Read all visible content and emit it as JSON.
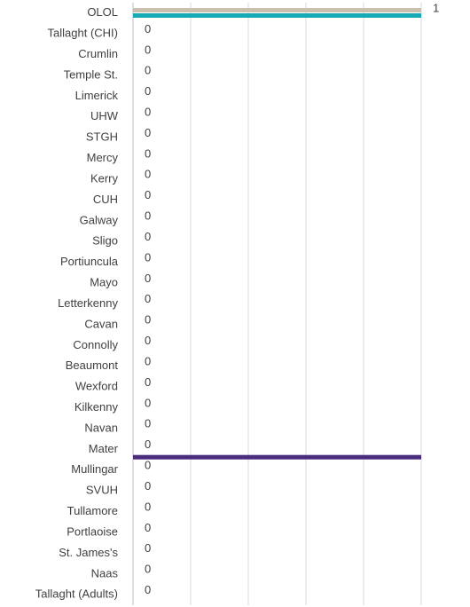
{
  "chart_data": {
    "type": "bar",
    "orientation": "horizontal",
    "categories": [
      "OLOL",
      "Tallaght (CHI)",
      "Crumlin",
      "Temple St.",
      "Limerick",
      "UHW",
      "STGH",
      "Mercy",
      "Kerry",
      "CUH",
      "Galway",
      "Sligo",
      "Portiuncula",
      "Mayo",
      "Letterkenny",
      "Cavan",
      "Connolly",
      "Beaumont",
      "Wexford",
      "Kilkenny",
      "Navan",
      "Mater",
      "Mullingar",
      "SVUH",
      "Tullamore",
      "Portlaoise",
      "St. James's",
      "Naas",
      "Tallaght (Adults)"
    ],
    "series": [
      {
        "color": "#c9bfae",
        "values": [
          1,
          0,
          0,
          0,
          0,
          0,
          0,
          0,
          0,
          0,
          0,
          0,
          0,
          0,
          0,
          0,
          0,
          0,
          0,
          0,
          0,
          0,
          0,
          0,
          0,
          0,
          0,
          0,
          0
        ],
        "data_labels": true
      },
      {
        "color": "#17a9b5",
        "values": [
          1,
          0,
          0,
          0,
          0,
          0,
          0,
          0,
          0,
          0,
          0,
          0,
          0,
          0,
          0,
          0,
          0,
          0,
          0,
          0,
          0,
          0,
          0,
          0,
          0,
          0,
          0,
          0,
          0
        ],
        "data_labels": false
      },
      {
        "color": "#4a2c7d",
        "values": [
          0,
          0,
          0,
          0,
          0,
          0,
          0,
          0,
          0,
          0,
          0,
          0,
          0,
          0,
          0,
          0,
          0,
          0,
          0,
          0,
          0,
          1,
          0,
          0,
          0,
          0,
          0,
          0,
          0
        ],
        "data_labels": false
      }
    ],
    "xlim": [
      0,
      1
    ],
    "xticks": [
      0,
      0.2,
      0.4,
      0.6,
      0.8,
      1
    ],
    "grid": true
  }
}
